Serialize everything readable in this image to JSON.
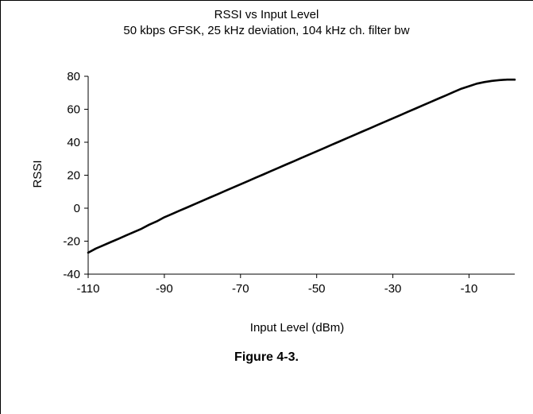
{
  "chart_data": {
    "type": "line",
    "title": "RSSI vs Input Level",
    "subtitle": "50 kbps GFSK, 25 kHz deviation, 104 kHz ch. filter bw",
    "xlabel": "Input Level (dBm)",
    "ylabel": "RSSI",
    "xlim": [
      -110,
      2
    ],
    "ylim": [
      -40,
      80
    ],
    "x_ticks": [
      -110,
      -90,
      -70,
      -50,
      -30,
      -10
    ],
    "y_ticks": [
      -40,
      -20,
      0,
      20,
      40,
      60,
      80
    ],
    "grid": false,
    "legend": "none",
    "series": [
      {
        "color": "#000000",
        "x": [
          -110,
          -108,
          -106,
          -104,
          -102,
          -100,
          -98,
          -96,
          -94,
          -92,
          -90,
          -88,
          -86,
          -84,
          -82,
          -80,
          -78,
          -76,
          -74,
          -72,
          -70,
          -68,
          -66,
          -64,
          -62,
          -60,
          -58,
          -56,
          -54,
          -52,
          -50,
          -48,
          -46,
          -44,
          -42,
          -40,
          -38,
          -36,
          -34,
          -32,
          -30,
          -28,
          -26,
          -24,
          -22,
          -20,
          -18,
          -16,
          -14,
          -12,
          -10,
          -8,
          -6,
          -4,
          -2,
          0,
          2
        ],
        "y": [
          -27,
          -24.5,
          -22.5,
          -20.5,
          -18.5,
          -16.5,
          -14.5,
          -12.5,
          -10,
          -8,
          -5.5,
          -3.5,
          -1.5,
          0.5,
          2.5,
          4.5,
          6.5,
          8.5,
          10.5,
          12.5,
          14.5,
          16.5,
          18.5,
          20.5,
          22.5,
          24.5,
          26.5,
          28.5,
          30.5,
          32.5,
          34.5,
          36.5,
          38.5,
          40.5,
          42.5,
          44.5,
          46.5,
          48.5,
          50.5,
          52.5,
          54.5,
          56.5,
          58.5,
          60.5,
          62.5,
          64.5,
          66.5,
          68.5,
          70.5,
          72.5,
          74,
          75.5,
          76.5,
          77.2,
          77.7,
          78,
          78
        ]
      }
    ]
  },
  "caption": "Figure 4-3."
}
